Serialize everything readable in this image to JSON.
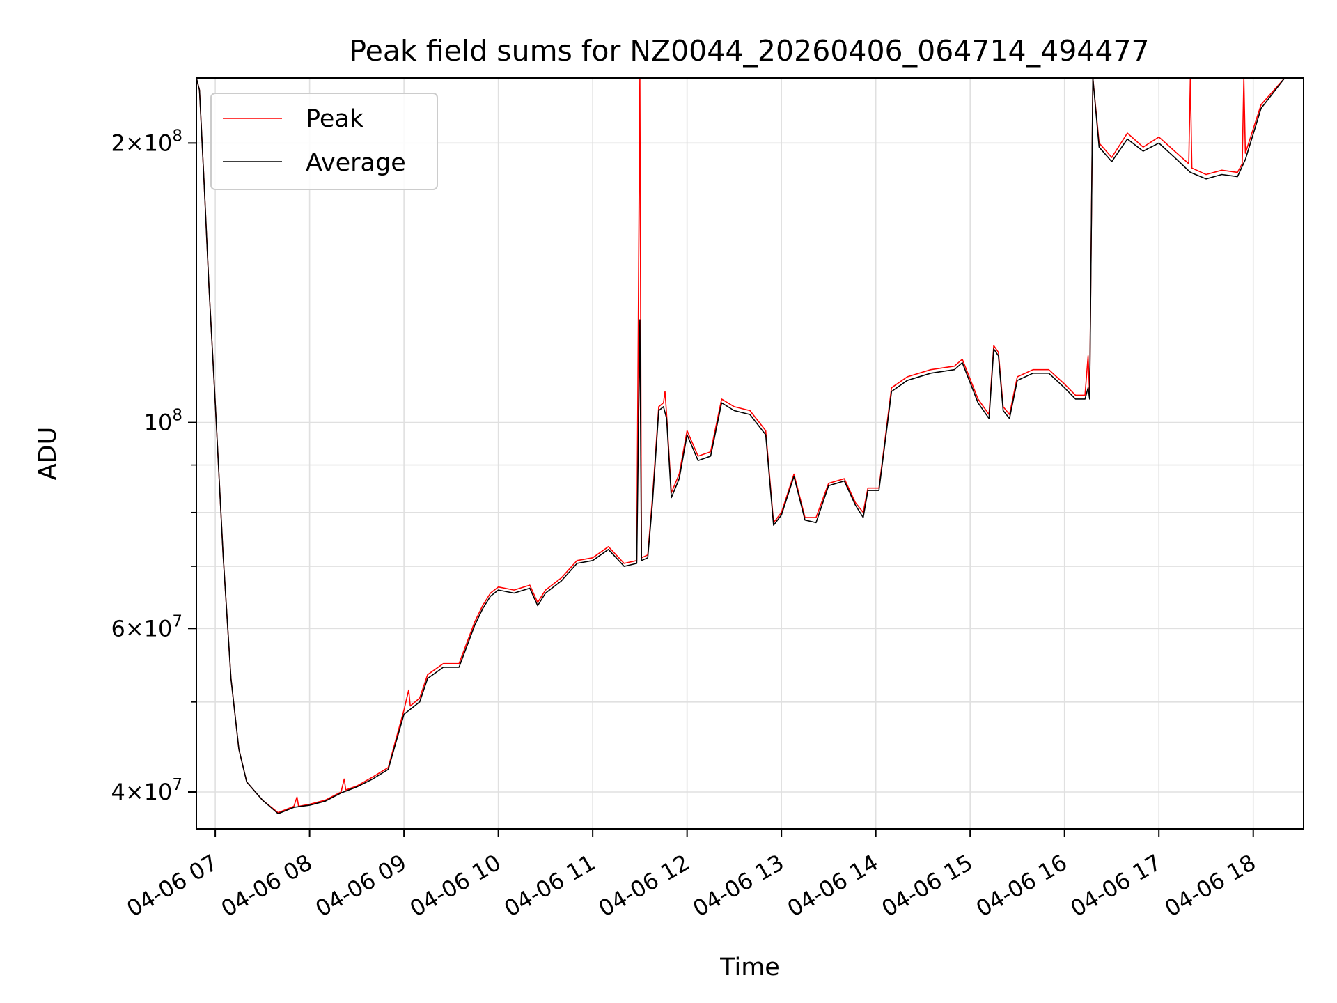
{
  "chart_data": {
    "type": "line",
    "title": "Peak field sums for NZ0044_20260406_064714_494477",
    "xlabel": "Time",
    "ylabel": "ADU",
    "y_scale": "log",
    "ylim": [
      36500000,
      235000000
    ],
    "xlim": [
      "04-06 06:48",
      "04-06 18:32"
    ],
    "grid": true,
    "legend_position": "upper-left",
    "x_ticks": [
      {
        "t": "04-06 07:00",
        "label": "04-06 07"
      },
      {
        "t": "04-06 08:00",
        "label": "04-06 08"
      },
      {
        "t": "04-06 09:00",
        "label": "04-06 09"
      },
      {
        "t": "04-06 10:00",
        "label": "04-06 10"
      },
      {
        "t": "04-06 11:00",
        "label": "04-06 11"
      },
      {
        "t": "04-06 12:00",
        "label": "04-06 12"
      },
      {
        "t": "04-06 13:00",
        "label": "04-06 13"
      },
      {
        "t": "04-06 14:00",
        "label": "04-06 14"
      },
      {
        "t": "04-06 15:00",
        "label": "04-06 15"
      },
      {
        "t": "04-06 16:00",
        "label": "04-06 16"
      },
      {
        "t": "04-06 17:00",
        "label": "04-06 17"
      },
      {
        "t": "04-06 18:00",
        "label": "04-06 18"
      }
    ],
    "y_major_ticks": [
      {
        "value": 40000000,
        "mantissa": "4",
        "exponent": "7"
      },
      {
        "value": 60000000,
        "mantissa": "6",
        "exponent": "7"
      },
      {
        "value": 100000000,
        "mantissa": "",
        "exponent": "8"
      },
      {
        "value": 200000000,
        "mantissa": "2",
        "exponent": "8"
      }
    ],
    "y_minor_ticks": [
      50000000,
      70000000,
      80000000,
      90000000
    ],
    "series": [
      {
        "name": "Peak",
        "color": "#ff0000",
        "points": [
          [
            "04-06 06:48",
            235000000
          ],
          [
            "04-06 06:50",
            228000000
          ],
          [
            "04-06 06:53",
            180000000
          ],
          [
            "04-06 06:56",
            140000000
          ],
          [
            "04-06 07:00",
            105000000
          ],
          [
            "04-06 07:05",
            72000000
          ],
          [
            "04-06 07:10",
            53000000
          ],
          [
            "04-06 07:15",
            44500000
          ],
          [
            "04-06 07:20",
            41000000
          ],
          [
            "04-06 07:30",
            39200000
          ],
          [
            "04-06 07:40",
            38000000
          ],
          [
            "04-06 07:50",
            38600000
          ],
          [
            "04-06 07:52",
            39500000
          ],
          [
            "04-06 07:53",
            38600000
          ],
          [
            "04-06 08:00",
            38800000
          ],
          [
            "04-06 08:10",
            39200000
          ],
          [
            "04-06 08:20",
            40000000
          ],
          [
            "04-06 08:22",
            41300000
          ],
          [
            "04-06 08:23",
            40200000
          ],
          [
            "04-06 08:30",
            40600000
          ],
          [
            "04-06 08:40",
            41500000
          ],
          [
            "04-06 08:50",
            42500000
          ],
          [
            "04-06 09:00",
            49000000
          ],
          [
            "04-06 09:03",
            51500000
          ],
          [
            "04-06 09:04",
            49500000
          ],
          [
            "04-06 09:10",
            50500000
          ],
          [
            "04-06 09:15",
            53500000
          ],
          [
            "04-06 09:25",
            55000000
          ],
          [
            "04-06 09:35",
            55000000
          ],
          [
            "04-06 09:45",
            61000000
          ],
          [
            "04-06 09:50",
            63500000
          ],
          [
            "04-06 09:55",
            65500000
          ],
          [
            "04-06 10:00",
            66500000
          ],
          [
            "04-06 10:10",
            66000000
          ],
          [
            "04-06 10:20",
            66800000
          ],
          [
            "04-06 10:25",
            64000000
          ],
          [
            "04-06 10:30",
            66000000
          ],
          [
            "04-06 10:40",
            68000000
          ],
          [
            "04-06 10:50",
            71000000
          ],
          [
            "04-06 11:00",
            71500000
          ],
          [
            "04-06 11:10",
            73500000
          ],
          [
            "04-06 11:20",
            70500000
          ],
          [
            "04-06 11:28",
            71000000
          ],
          [
            "04-06 11:30",
            235000000
          ],
          [
            "04-06 11:31",
            71500000
          ],
          [
            "04-06 11:35",
            72000000
          ],
          [
            "04-06 11:38",
            83000000
          ],
          [
            "04-06 11:42",
            104000000
          ],
          [
            "04-06 11:45",
            105000000
          ],
          [
            "04-06 11:46",
            108000000
          ],
          [
            "04-06 11:47",
            102000000
          ],
          [
            "04-06 11:50",
            84000000
          ],
          [
            "04-06 11:55",
            88000000
          ],
          [
            "04-06 12:00",
            98000000
          ],
          [
            "04-06 12:07",
            92000000
          ],
          [
            "04-06 12:15",
            93000000
          ],
          [
            "04-06 12:22",
            106000000
          ],
          [
            "04-06 12:30",
            104000000
          ],
          [
            "04-06 12:40",
            103000000
          ],
          [
            "04-06 12:50",
            98000000
          ],
          [
            "04-06 12:55",
            78000000
          ],
          [
            "04-06 13:00",
            80000000
          ],
          [
            "04-06 13:08",
            88000000
          ],
          [
            "04-06 13:15",
            79000000
          ],
          [
            "04-06 13:22",
            79000000
          ],
          [
            "04-06 13:30",
            86000000
          ],
          [
            "04-06 13:40",
            87000000
          ],
          [
            "04-06 13:47",
            82000000
          ],
          [
            "04-06 13:52",
            80000000
          ],
          [
            "04-06 13:55",
            85000000
          ],
          [
            "04-06 14:02",
            85000000
          ],
          [
            "04-06 14:10",
            109000000
          ],
          [
            "04-06 14:20",
            112000000
          ],
          [
            "04-06 14:35",
            114000000
          ],
          [
            "04-06 14:50",
            115000000
          ],
          [
            "04-06 14:55",
            117000000
          ],
          [
            "04-06 15:05",
            106000000
          ],
          [
            "04-06 15:12",
            102000000
          ],
          [
            "04-06 15:15",
            121000000
          ],
          [
            "04-06 15:18",
            119000000
          ],
          [
            "04-06 15:21",
            104000000
          ],
          [
            "04-06 15:25",
            102000000
          ],
          [
            "04-06 15:30",
            112000000
          ],
          [
            "04-06 15:40",
            114000000
          ],
          [
            "04-06 15:50",
            114000000
          ],
          [
            "04-06 16:00",
            110000000
          ],
          [
            "04-06 16:07",
            107000000
          ],
          [
            "04-06 16:13",
            107000000
          ],
          [
            "04-06 16:15",
            118000000
          ],
          [
            "04-06 16:16",
            107000000
          ],
          [
            "04-06 16:18",
            235000000
          ],
          [
            "04-06 16:22",
            200000000
          ],
          [
            "04-06 16:30",
            193000000
          ],
          [
            "04-06 16:40",
            205000000
          ],
          [
            "04-06 16:50",
            198000000
          ],
          [
            "04-06 17:00",
            203000000
          ],
          [
            "04-06 17:10",
            196000000
          ],
          [
            "04-06 17:19",
            190000000
          ],
          [
            "04-06 17:20",
            235000000
          ],
          [
            "04-06 17:21",
            188000000
          ],
          [
            "04-06 17:30",
            185000000
          ],
          [
            "04-06 17:40",
            187000000
          ],
          [
            "04-06 17:50",
            186000000
          ],
          [
            "04-06 17:53",
            190000000
          ],
          [
            "04-06 17:54",
            235000000
          ],
          [
            "04-06 17:55",
            195000000
          ],
          [
            "04-06 18:05",
            220000000
          ],
          [
            "04-06 18:20",
            235000000
          ],
          [
            "04-06 18:32",
            235000000
          ]
        ]
      },
      {
        "name": "Average",
        "color": "#000000",
        "points": [
          [
            "04-06 06:48",
            235000000
          ],
          [
            "04-06 06:50",
            228000000
          ],
          [
            "04-06 06:53",
            180000000
          ],
          [
            "04-06 06:56",
            140000000
          ],
          [
            "04-06 07:00",
            105000000
          ],
          [
            "04-06 07:05",
            72000000
          ],
          [
            "04-06 07:10",
            53000000
          ],
          [
            "04-06 07:15",
            44500000
          ],
          [
            "04-06 07:20",
            41000000
          ],
          [
            "04-06 07:30",
            39200000
          ],
          [
            "04-06 07:40",
            37900000
          ],
          [
            "04-06 07:50",
            38500000
          ],
          [
            "04-06 08:00",
            38700000
          ],
          [
            "04-06 08:10",
            39100000
          ],
          [
            "04-06 08:20",
            39900000
          ],
          [
            "04-06 08:30",
            40500000
          ],
          [
            "04-06 08:40",
            41300000
          ],
          [
            "04-06 08:50",
            42300000
          ],
          [
            "04-06 09:00",
            48500000
          ],
          [
            "04-06 09:10",
            50000000
          ],
          [
            "04-06 09:15",
            53000000
          ],
          [
            "04-06 09:25",
            54500000
          ],
          [
            "04-06 09:35",
            54500000
          ],
          [
            "04-06 09:45",
            60500000
          ],
          [
            "04-06 09:50",
            63000000
          ],
          [
            "04-06 09:55",
            65000000
          ],
          [
            "04-06 10:00",
            66000000
          ],
          [
            "04-06 10:10",
            65500000
          ],
          [
            "04-06 10:20",
            66300000
          ],
          [
            "04-06 10:25",
            63500000
          ],
          [
            "04-06 10:30",
            65500000
          ],
          [
            "04-06 10:40",
            67500000
          ],
          [
            "04-06 10:50",
            70500000
          ],
          [
            "04-06 11:00",
            71000000
          ],
          [
            "04-06 11:10",
            73000000
          ],
          [
            "04-06 11:20",
            70000000
          ],
          [
            "04-06 11:28",
            70500000
          ],
          [
            "04-06 11:30",
            129000000
          ],
          [
            "04-06 11:31",
            71000000
          ],
          [
            "04-06 11:35",
            71500000
          ],
          [
            "04-06 11:38",
            82000000
          ],
          [
            "04-06 11:42",
            103000000
          ],
          [
            "04-06 11:45",
            104000000
          ],
          [
            "04-06 11:47",
            101000000
          ],
          [
            "04-06 11:50",
            83000000
          ],
          [
            "04-06 11:55",
            87000000
          ],
          [
            "04-06 12:00",
            97000000
          ],
          [
            "04-06 12:07",
            91000000
          ],
          [
            "04-06 12:15",
            92000000
          ],
          [
            "04-06 12:22",
            105000000
          ],
          [
            "04-06 12:30",
            103000000
          ],
          [
            "04-06 12:40",
            102000000
          ],
          [
            "04-06 12:50",
            97000000
          ],
          [
            "04-06 12:55",
            77500000
          ],
          [
            "04-06 13:00",
            79500000
          ],
          [
            "04-06 13:08",
            87500000
          ],
          [
            "04-06 13:15",
            78500000
          ],
          [
            "04-06 13:22",
            78000000
          ],
          [
            "04-06 13:30",
            85500000
          ],
          [
            "04-06 13:40",
            86500000
          ],
          [
            "04-06 13:47",
            81500000
          ],
          [
            "04-06 13:52",
            79000000
          ],
          [
            "04-06 13:55",
            84500000
          ],
          [
            "04-06 14:02",
            84500000
          ],
          [
            "04-06 14:10",
            108000000
          ],
          [
            "04-06 14:20",
            111000000
          ],
          [
            "04-06 14:35",
            113000000
          ],
          [
            "04-06 14:50",
            114000000
          ],
          [
            "04-06 14:55",
            116000000
          ],
          [
            "04-06 15:05",
            105000000
          ],
          [
            "04-06 15:12",
            101000000
          ],
          [
            "04-06 15:15",
            120000000
          ],
          [
            "04-06 15:18",
            118000000
          ],
          [
            "04-06 15:21",
            103000000
          ],
          [
            "04-06 15:25",
            101000000
          ],
          [
            "04-06 15:30",
            111000000
          ],
          [
            "04-06 15:40",
            113000000
          ],
          [
            "04-06 15:50",
            113000000
          ],
          [
            "04-06 16:00",
            109000000
          ],
          [
            "04-06 16:07",
            106000000
          ],
          [
            "04-06 16:13",
            106000000
          ],
          [
            "04-06 16:15",
            109000000
          ],
          [
            "04-06 16:16",
            106000000
          ],
          [
            "04-06 16:18",
            235000000
          ],
          [
            "04-06 16:22",
            198000000
          ],
          [
            "04-06 16:30",
            191000000
          ],
          [
            "04-06 16:40",
            202000000
          ],
          [
            "04-06 16:50",
            196000000
          ],
          [
            "04-06 17:00",
            200000000
          ],
          [
            "04-06 17:10",
            193000000
          ],
          [
            "04-06 17:20",
            186000000
          ],
          [
            "04-06 17:30",
            183000000
          ],
          [
            "04-06 17:40",
            185000000
          ],
          [
            "04-06 17:50",
            184000000
          ],
          [
            "04-06 17:55",
            192000000
          ],
          [
            "04-06 18:05",
            218000000
          ],
          [
            "04-06 18:20",
            235000000
          ],
          [
            "04-06 18:32",
            235000000
          ]
        ]
      }
    ]
  }
}
